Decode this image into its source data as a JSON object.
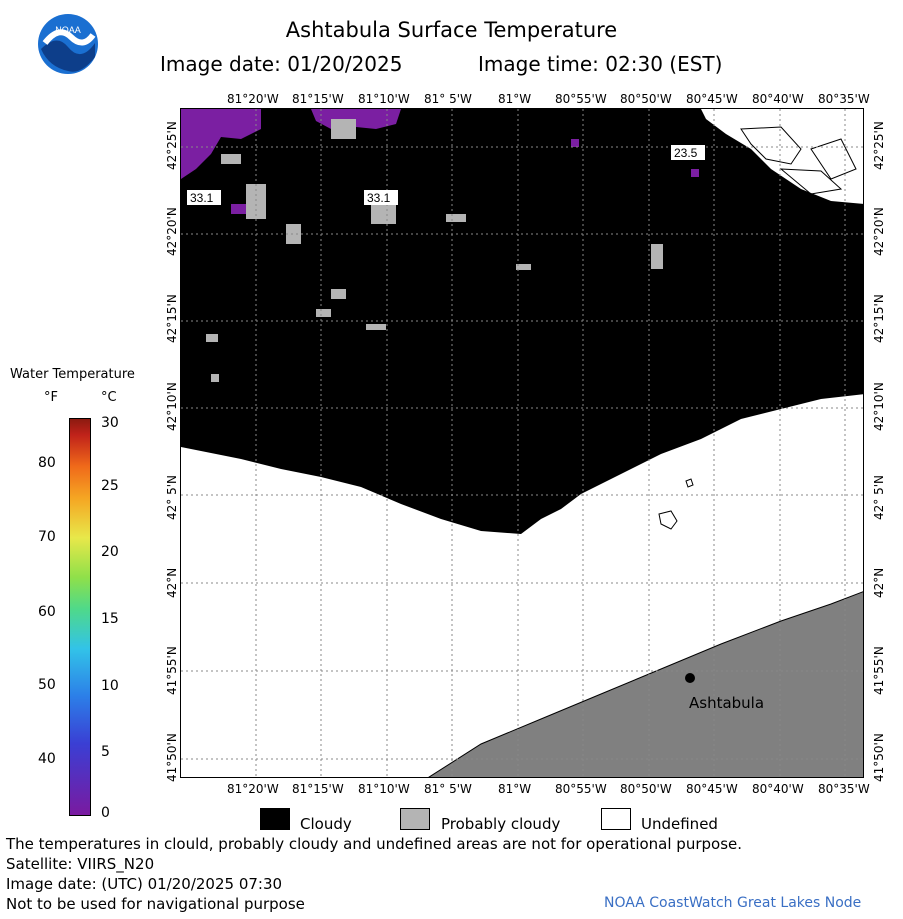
{
  "header": {
    "title": "Ashtabula Surface Temperature",
    "image_date": "Image date: 01/20/2025",
    "image_time": "Image time: 02:30 (EST)"
  },
  "logo": {
    "text": "NOAA",
    "icon": "noaa-logo-icon"
  },
  "map": {
    "lon_labels": [
      "81°20'W",
      "81°15'W",
      "81°10'W",
      "81° 5'W",
      "81°W",
      "80°55'W",
      "80°50'W",
      "80°45'W",
      "80°40'W",
      "80°35'W"
    ],
    "lat_labels": [
      "42°25'N",
      "42°20'N",
      "42°15'N",
      "42°10'N",
      "42° 5'N",
      "42°N",
      "41°55'N",
      "41°50'N"
    ],
    "labels": [
      "33.1",
      "33.1",
      "23.5"
    ],
    "city": "Ashtabula",
    "colors": {
      "cloudy": "#000000",
      "probably_cloudy": "#b4b4b4",
      "undefined": "#ffffff",
      "land": "#808080",
      "grid": "#888888",
      "cold": "#7b1fa2"
    }
  },
  "scale": {
    "title": "Water Temperature",
    "unit_f": "°F",
    "unit_c": "°C",
    "f_labels": [
      "80",
      "70",
      "60",
      "50",
      "40"
    ],
    "c_labels": [
      "30",
      "25",
      "20",
      "15",
      "10",
      "5",
      "0"
    ]
  },
  "legend": {
    "cloudy": "Cloudy",
    "probably_cloudy": "Probably cloudy",
    "undefined": "Undefined"
  },
  "notes": {
    "disclaimer": "The temperatures in clould, probably cloudy and undefined areas are not for operational purpose.",
    "satellite": "Satellite: VIIRS_N20",
    "utc_date": "Image date: (UTC) 01/20/2025  07:30",
    "navigation": "Not to be used for navigational purpose",
    "credit": "NOAA CoastWatch Great Lakes Node"
  }
}
